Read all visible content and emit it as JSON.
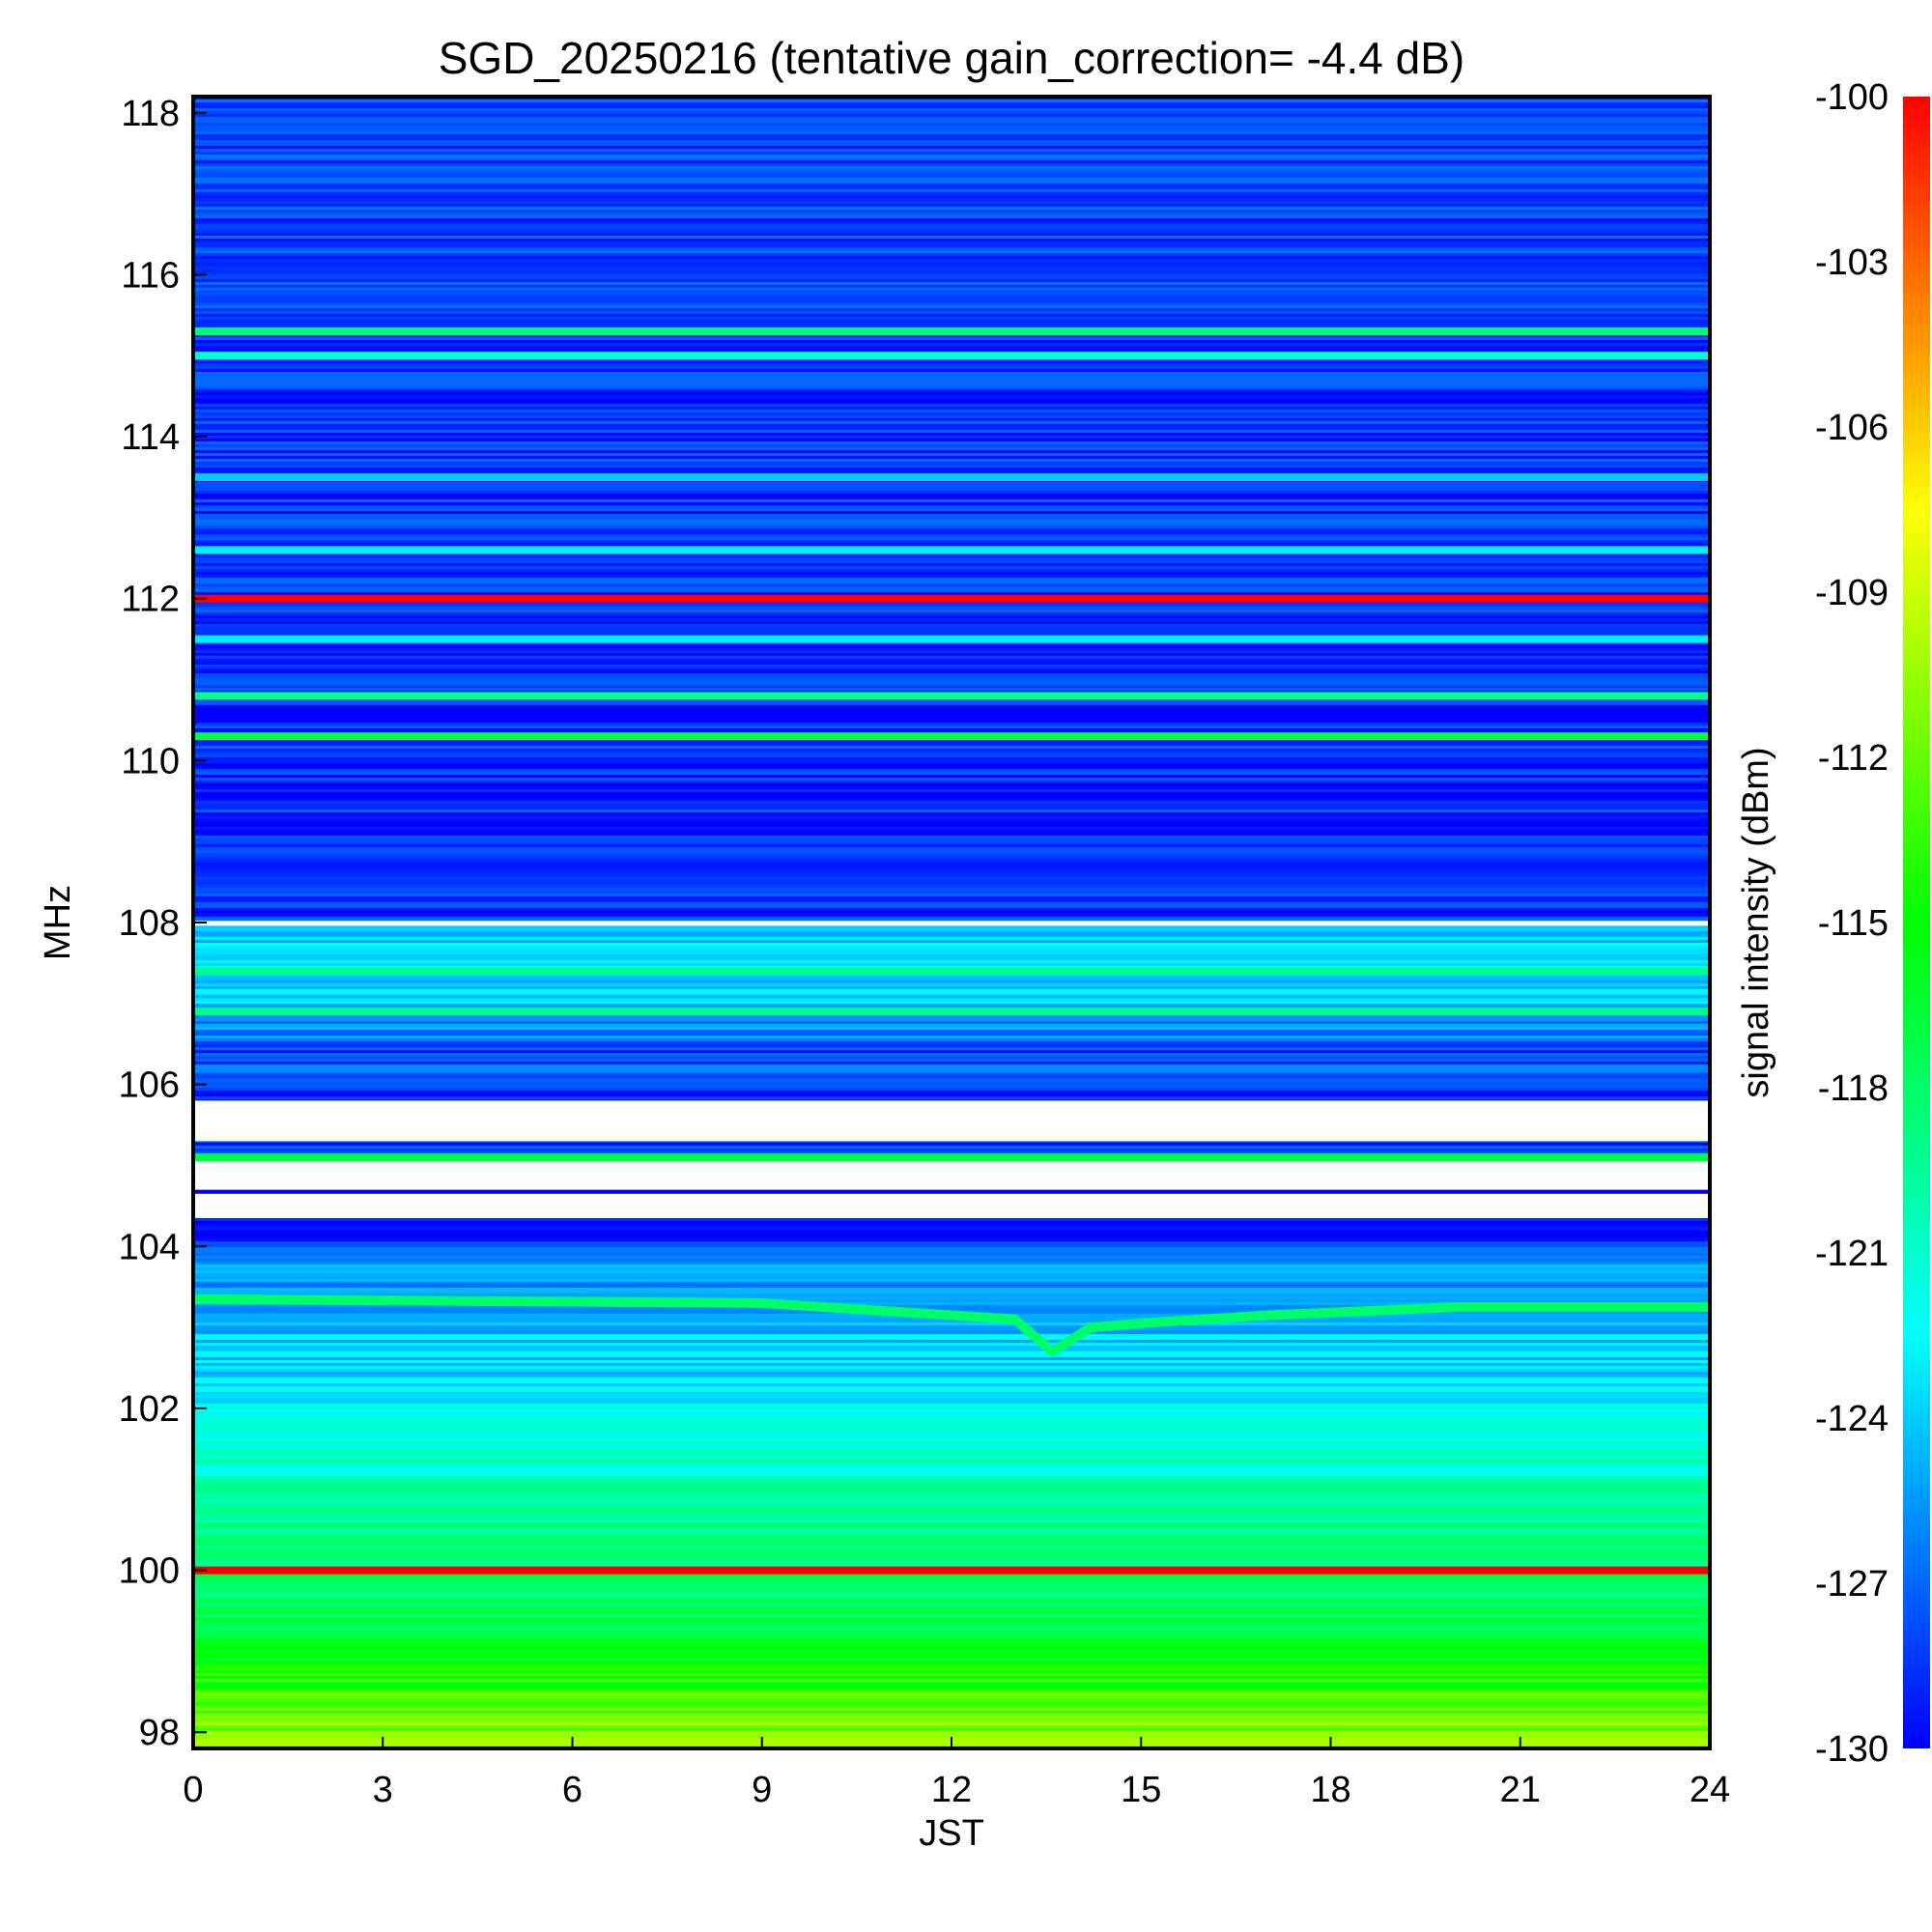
{
  "chart_data": {
    "type": "heatmap",
    "title": "SGD_20250216 (tentative gain_correction= -4.4 dB)",
    "xlabel": "JST",
    "ylabel": "MHz",
    "colorbar_label": "signal intensity (dBm)",
    "xlim": [
      0,
      24
    ],
    "ylim": [
      97.8,
      118.2
    ],
    "clim": [
      -130,
      -100
    ],
    "x_ticks": [
      "0",
      "3",
      "6",
      "9",
      "12",
      "15",
      "18",
      "21",
      "24"
    ],
    "y_ticks": [
      "98",
      "100",
      "102",
      "104",
      "106",
      "108",
      "110",
      "112",
      "114",
      "116",
      "118"
    ],
    "colorbar_ticks": [
      "-100",
      "-103",
      "-106",
      "-109",
      "-112",
      "-115",
      "-118",
      "-121",
      "-124",
      "-127",
      "-130"
    ],
    "colormap": [
      "#0000ff",
      "#00ffff",
      "#00ff00",
      "#ffff00",
      "#ff0000"
    ],
    "background_profile": [
      {
        "freq": 97.8,
        "dbm": -110
      },
      {
        "freq": 98.2,
        "dbm": -112
      },
      {
        "freq": 99.0,
        "dbm": -116
      },
      {
        "freq": 100.0,
        "dbm": -118
      },
      {
        "freq": 101.0,
        "dbm": -120
      },
      {
        "freq": 102.0,
        "dbm": -123
      },
      {
        "freq": 103.0,
        "dbm": -124
      },
      {
        "freq": 103.8,
        "dbm": -126
      },
      {
        "freq": 104.2,
        "dbm": -129
      },
      {
        "freq": 106.4,
        "dbm": -128
      },
      {
        "freq": 107.0,
        "dbm": -124
      },
      {
        "freq": 107.9,
        "dbm": -124
      },
      {
        "freq": 108.1,
        "dbm": -129
      },
      {
        "freq": 118.2,
        "dbm": -128
      }
    ],
    "gap_bands": [
      {
        "f1": 105.3,
        "f2": 105.8,
        "dbm": null
      },
      {
        "f1": 104.7,
        "f2": 105.05,
        "dbm": null
      },
      {
        "f1": 104.35,
        "f2": 104.65,
        "dbm": null
      },
      {
        "f1": 107.96,
        "f2": 108.02,
        "dbm": null
      }
    ],
    "carriers": [
      {
        "freq": 100.0,
        "dbm": -100
      },
      {
        "freq": 112.0,
        "dbm": -100
      },
      {
        "freq": 105.1,
        "dbm": -117
      },
      {
        "freq": 110.3,
        "dbm": -117
      },
      {
        "freq": 110.8,
        "dbm": -119
      },
      {
        "freq": 115.3,
        "dbm": -118
      },
      {
        "freq": 115.0,
        "dbm": -121
      },
      {
        "freq": 113.5,
        "dbm": -124
      },
      {
        "freq": 112.6,
        "dbm": -123
      },
      {
        "freq": 111.5,
        "dbm": -123
      },
      {
        "freq": 107.4,
        "dbm": -119
      },
      {
        "freq": 106.9,
        "dbm": -119
      },
      {
        "freq": 106.2,
        "dbm": -126
      }
    ],
    "drifting_carrier": {
      "dbm": -118,
      "points": [
        {
          "t": 0,
          "f": 103.35
        },
        {
          "t": 9,
          "f": 103.3
        },
        {
          "t": 12,
          "f": 103.15
        },
        {
          "t": 13.0,
          "f": 103.1
        },
        {
          "t": 13.6,
          "f": 102.7
        },
        {
          "t": 14.2,
          "f": 103.0
        },
        {
          "t": 15,
          "f": 103.05
        },
        {
          "t": 17,
          "f": 103.15
        },
        {
          "t": 20,
          "f": 103.25
        },
        {
          "t": 24,
          "f": 103.25
        }
      ]
    }
  }
}
